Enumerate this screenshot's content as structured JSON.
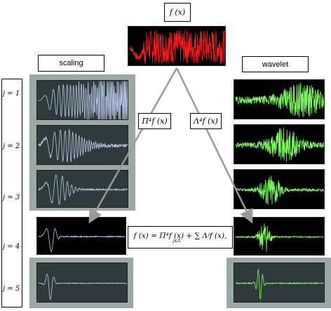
{
  "top": {
    "fx_label": "f (x)"
  },
  "scaling": {
    "label": "scaling"
  },
  "wavelet": {
    "label": "wavelet"
  },
  "operators": {
    "pi": "Π⁴f (x)",
    "lambda": "Λ⁴f (x)"
  },
  "formula": {
    "text": "f (x) = Π⁴f (x) + ∑ Λʲf (x),",
    "subscript": "j∈Λ"
  },
  "levels": [
    "j = 1",
    "j = 2",
    "j = 3",
    "j = 4",
    "j = 5"
  ],
  "colors": {
    "signal": "#ff1a1a",
    "scaling_trace": "#b9c8e6",
    "wavelet_trace": "#7dff5a",
    "gray_frame": "#9aa8a6",
    "plot_dark": "#2e3a3b",
    "plot_black": "#000000"
  }
}
